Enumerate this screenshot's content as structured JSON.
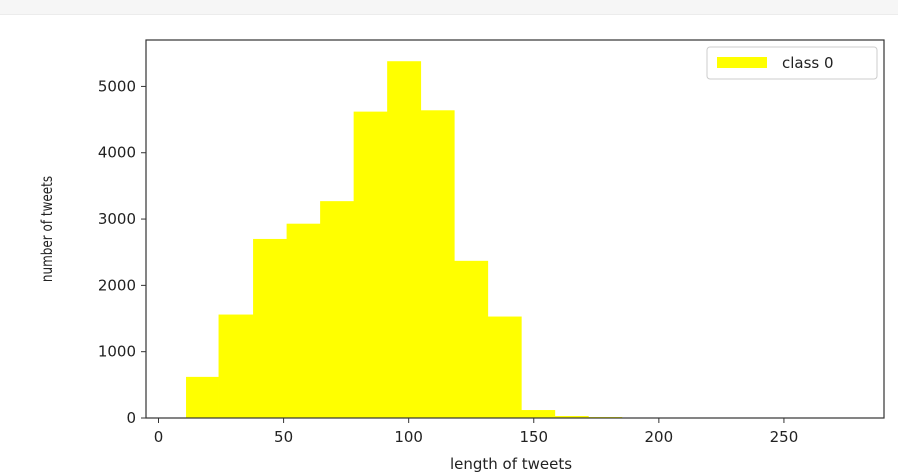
{
  "chart_data": {
    "type": "bar",
    "subtype": "histogram",
    "xlabel": "length of tweets",
    "ylabel": "number of tweets",
    "xlim": [
      -5,
      290
    ],
    "ylim": [
      0,
      5700
    ],
    "xticks": [
      0,
      50,
      100,
      150,
      200,
      250
    ],
    "yticks": [
      0,
      1000,
      2000,
      3000,
      4000,
      5000
    ],
    "grid": false,
    "legend_position": "top-right",
    "bar_color": "#ffff00",
    "bin_edges": [
      11,
      24,
      37.8,
      51.2,
      64.6,
      78,
      91.4,
      104.8,
      118.2,
      131.6,
      145,
      158.4,
      171.8,
      185.2,
      198.6,
      212,
      225.4,
      238.8,
      252.2,
      265.6,
      279
    ],
    "series": [
      {
        "name": "class 0",
        "values": [
          620,
          1560,
          2700,
          2930,
          3270,
          4620,
          5380,
          4640,
          2370,
          1530,
          120,
          30,
          15,
          0,
          0,
          0,
          0,
          0,
          0,
          0
        ]
      }
    ]
  }
}
